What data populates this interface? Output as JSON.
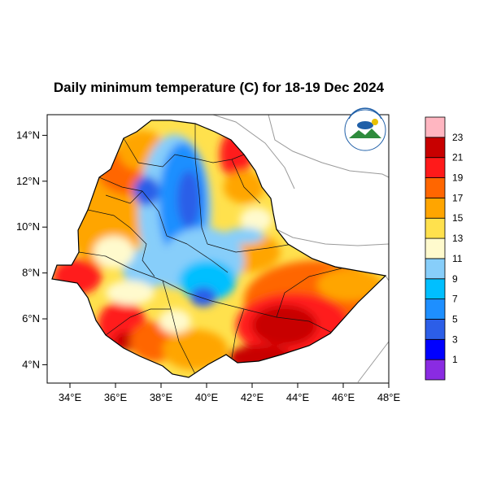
{
  "title": "Daily minimum temperature (C) for 18-19 Dec 2024",
  "map": {
    "lon_range": [
      33,
      48
    ],
    "lat_range": [
      3.2,
      14.9
    ],
    "x_ticks": [
      "34°E",
      "36°E",
      "38°E",
      "40°E",
      "42°E",
      "44°E",
      "46°E",
      "48°E"
    ],
    "x_tick_values": [
      34,
      36,
      38,
      40,
      42,
      44,
      46,
      48
    ],
    "y_ticks": [
      "14°N",
      "12°N",
      "10°N",
      "8°N",
      "6°N",
      "4°N"
    ],
    "y_tick_values": [
      14,
      12,
      10,
      8,
      6,
      4
    ]
  },
  "colorbar": {
    "colors": [
      "#8a2be2",
      "#0000ff",
      "#2c5ee8",
      "#1e8fff",
      "#00bfff",
      "#87cefa",
      "#fffacd",
      "#ffe14d",
      "#ffa500",
      "#ff6600",
      "#ff1a1a",
      "#c80000",
      "#ffb6c1"
    ],
    "labels": [
      "1",
      "3",
      "5",
      "7",
      "9",
      "11",
      "13",
      "15",
      "17",
      "19",
      "21",
      "23"
    ]
  },
  "logo": {
    "colors": [
      "#1f5fa8",
      "#2e8b3c",
      "#e8c000"
    ]
  }
}
